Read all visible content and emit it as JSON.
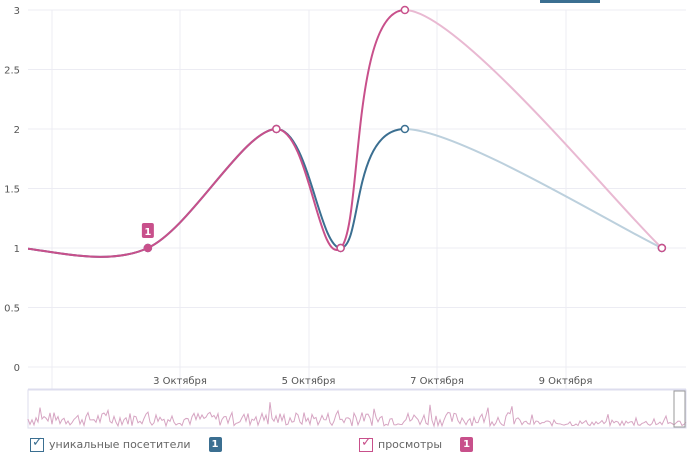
{
  "chart_data": {
    "type": "line",
    "x": [
      "Sep 30 12:00",
      "Oct 2 12:00",
      "Oct 4 12:00",
      "Oct 5 12:00",
      "Oct 6 12:00",
      "Oct 10 12:00"
    ],
    "series": [
      {
        "name": "уникальные посетители",
        "values": [
          1,
          1,
          2,
          1,
          2,
          1
        ],
        "color": "#3b6f91",
        "incomplete_color": "#bcd0dd"
      },
      {
        "name": "просмотры",
        "values": [
          1,
          1,
          2,
          1,
          3,
          1
        ],
        "color": "#c8508b",
        "incomplete_color": "#e9b9d2"
      }
    ],
    "incomplete_from": "Oct 6 12:00",
    "ylim": [
      0,
      3
    ],
    "yticks": [
      "0",
      "0.5",
      "1",
      "1.5",
      "2",
      "2.5",
      "3"
    ],
    "xticks": [
      "3 Октября",
      "5 Октября",
      "7 Октября",
      "9 Октября"
    ],
    "grid": true,
    "annotation": {
      "x": "Oct 2 12:00",
      "label": "1"
    },
    "legend_position": "bottom"
  },
  "legend": {
    "unique": {
      "label": "уникальные посетители",
      "count": "1",
      "checked": true
    },
    "views": {
      "label": "просмотры",
      "count": "1",
      "checked": true
    }
  }
}
